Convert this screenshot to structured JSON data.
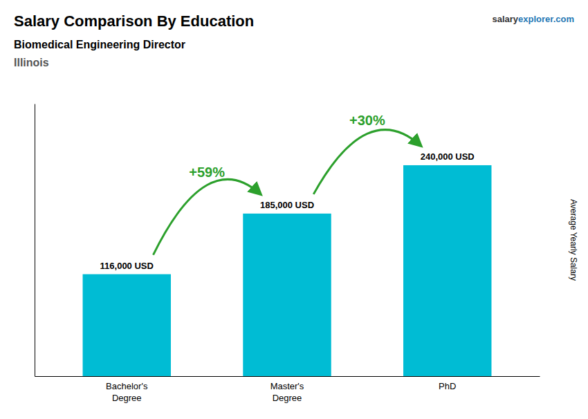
{
  "chart_data": {
    "type": "bar",
    "title": "Salary Comparison By Education",
    "subtitle": "Biomedical Engineering Director",
    "location": "Illinois",
    "ylabel": "Average Yearly Salary",
    "watermark": [
      "salary",
      "explorer.com"
    ],
    "categories": [
      "Bachelor's\nDegree",
      "Master's\nDegree",
      "PhD"
    ],
    "values": [
      116000,
      185000,
      240000
    ],
    "value_labels": [
      "116,000 USD",
      "185,000 USD",
      "240,000 USD"
    ],
    "data_labels": true,
    "annotations": [
      "+59%",
      "+30%"
    ],
    "color": "#00bcd4",
    "ylim": [
      0,
      310000
    ],
    "tick_labels": "x"
  }
}
